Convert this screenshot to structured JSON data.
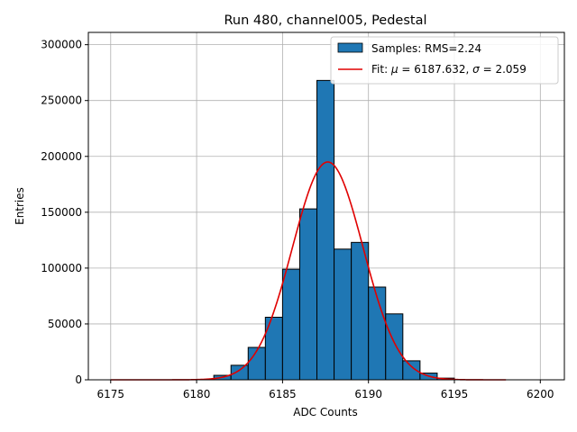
{
  "chart_data": {
    "type": "bar",
    "title": "Run 480, channel005, Pedestal",
    "xlabel": "ADC Counts",
    "ylabel": "Entries",
    "xlim": [
      6173.7,
      6201.4
    ],
    "ylim": [
      0,
      311000
    ],
    "xticks": [
      6175,
      6180,
      6185,
      6190,
      6195,
      6200
    ],
    "yticks": [
      0,
      50000,
      100000,
      150000,
      200000,
      250000,
      300000
    ],
    "grid": true,
    "legend": "top-right",
    "colors": {
      "bars": "#1f77b4",
      "edge": "#000000",
      "fit": "#e00000",
      "grid": "#b0b0b0"
    },
    "bins": {
      "start": 6181,
      "width": 1,
      "values": [
        4000,
        13000,
        29000,
        56000,
        99000,
        153000,
        268000,
        117000,
        123000,
        83000,
        59000,
        17000,
        6000,
        1500
      ]
    },
    "series": [
      {
        "name": "Samples: RMS=2.24",
        "kind": "histogram"
      },
      {
        "name_prefix": "Fit: ",
        "mu_symbol": "μ",
        "sigma_symbol": "σ",
        "mu_value": "6187.632",
        "sigma_value": "2.059",
        "kind": "line",
        "x_range": [
          6175,
          6198
        ],
        "peak": 195000
      }
    ]
  }
}
